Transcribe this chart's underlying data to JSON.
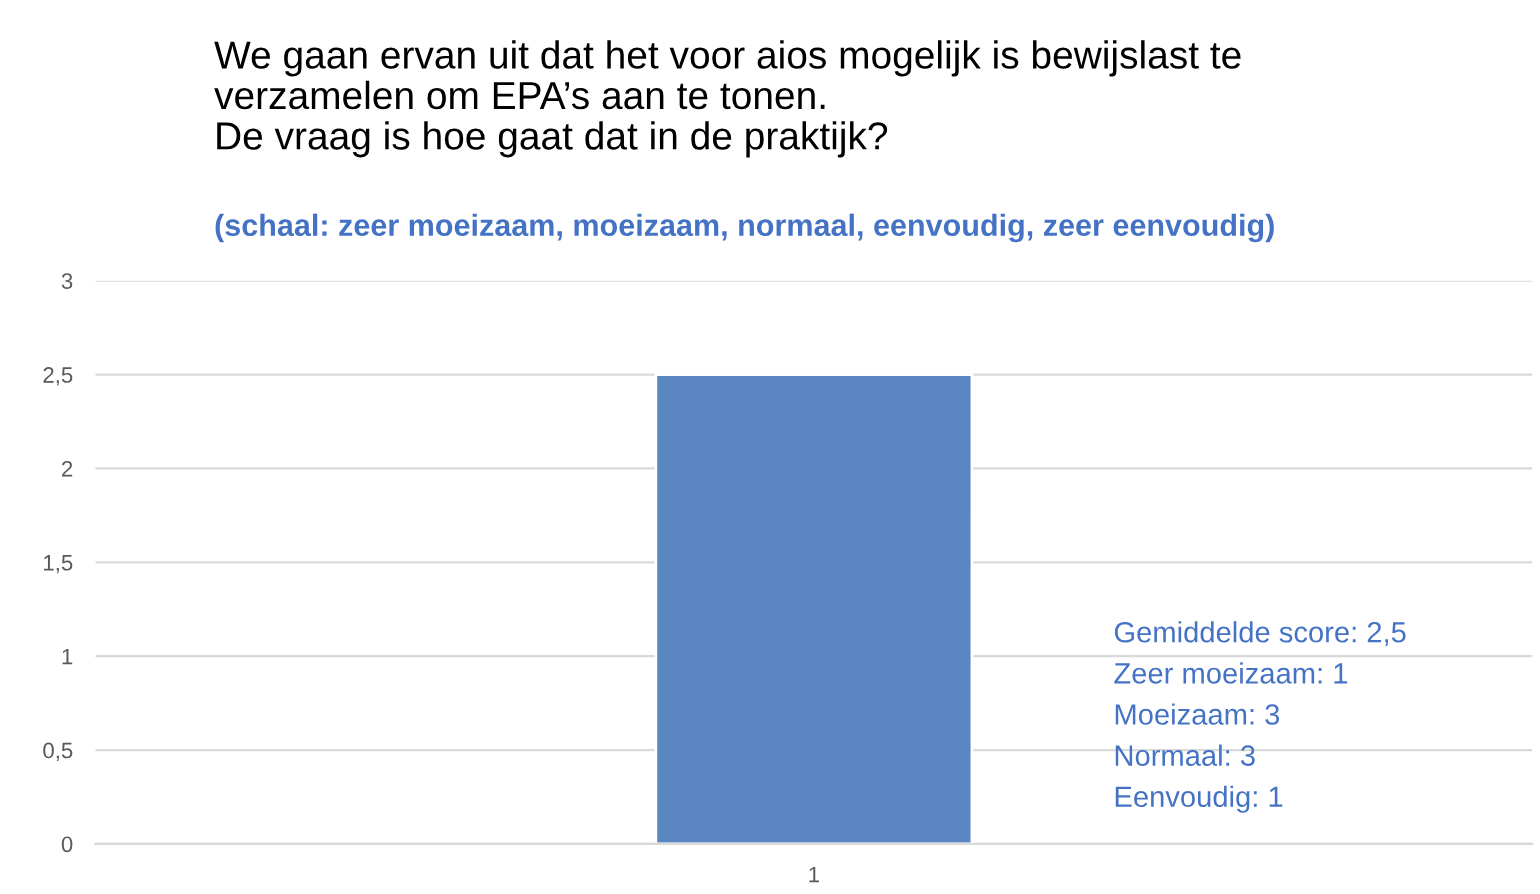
{
  "chart_data": {
    "type": "bar",
    "title": "We gaan ervan uit dat het voor aios mogelijk is bewijslast te\nverzamelen om EPA’s aan te tonen.\nDe vraag is hoe gaat dat in de praktijk?",
    "subtitle": "(schaal: zeer moeizaam, moeizaam, normaal, eenvoudig, zeer eenvoudig)",
    "categories": [
      "1"
    ],
    "values": [
      2.5
    ],
    "color": "#5a87c2",
    "ylim": [
      0,
      3
    ],
    "yticks": [
      0,
      {
        "value": 0.5,
        "label": "0,5"
      },
      1,
      {
        "value": 1.5,
        "label": "1,5"
      },
      2,
      {
        "value": 2.5,
        "label": "2,5"
      },
      3
    ],
    "grid": "y",
    "annotations": [
      "Gemiddelde score: 2,5",
      "Zeer moeizaam: 1",
      "Moeizaam: 3",
      "Normaal: 3",
      "Eenvoudig: 1"
    ]
  }
}
